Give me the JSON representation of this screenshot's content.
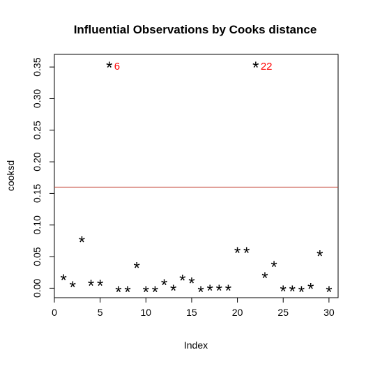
{
  "chart_data": {
    "type": "scatter",
    "title": "Influential Observations by Cooks distance",
    "xlabel": "Index",
    "ylabel": "cooksd",
    "xlim": [
      0,
      31
    ],
    "ylim": [
      -0.015,
      0.37
    ],
    "x_ticks": [
      "0",
      "5",
      "10",
      "15",
      "20",
      "25",
      "30"
    ],
    "y_ticks": [
      "0.00",
      "0.05",
      "0.10",
      "0.15",
      "0.20",
      "0.25",
      "0.30",
      "0.35"
    ],
    "marker": "*",
    "grid": false,
    "legend": "none",
    "x": [
      1,
      2,
      3,
      4,
      5,
      6,
      7,
      8,
      9,
      10,
      11,
      12,
      13,
      14,
      15,
      16,
      17,
      18,
      19,
      20,
      21,
      22,
      23,
      24,
      25,
      26,
      27,
      28,
      29,
      30
    ],
    "y": [
      0.015,
      0.004,
      0.075,
      0.006,
      0.006,
      0.351,
      -0.004,
      -0.004,
      0.034,
      -0.004,
      -0.004,
      0.007,
      -0.002,
      0.014,
      0.01,
      -0.004,
      -0.002,
      -0.002,
      -0.002,
      0.058,
      0.058,
      0.351,
      0.018,
      0.036,
      -0.003,
      -0.003,
      -0.004,
      0.001,
      0.053,
      -0.004
    ],
    "threshold": {
      "y": 0.16,
      "color": "#c0392b"
    },
    "annotations": [
      {
        "x": 6,
        "y": 0.351,
        "text": "6",
        "color": "#ff0000"
      },
      {
        "x": 22,
        "y": 0.351,
        "text": "22",
        "color": "#ff0000"
      }
    ]
  }
}
